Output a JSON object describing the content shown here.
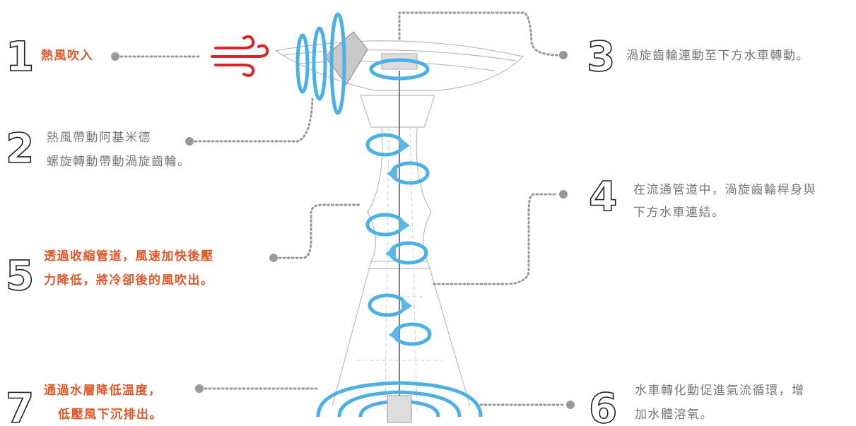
{
  "callouts": [
    {
      "number": "1",
      "lines": [
        "熱風吹入"
      ],
      "highlight": true
    },
    {
      "number": "2",
      "lines": [
        "熱風帶動阿基米德",
        "螺旋轉動帶動渦旋齒輪。"
      ],
      "highlight": false
    },
    {
      "number": "3",
      "lines": [
        "渦旋齒輪連動至下方水車轉動。"
      ],
      "highlight": false
    },
    {
      "number": "4",
      "lines": [
        "在流通管道中，渦旋齒輪桿身與",
        "下方水車連結。"
      ],
      "highlight": false
    },
    {
      "number": "5",
      "lines": [
        "透過收縮管道，風速加快後壓",
        "力降低，將冷卻後的風吹出。"
      ],
      "highlight": true
    },
    {
      "number": "6",
      "lines": [
        "水車轉化動促進氣流循環，增",
        "加水體溶氧。"
      ],
      "highlight": false
    },
    {
      "number": "7",
      "lines": [
        "通過水層降低溫度，",
        "低壓風下沉排出。"
      ],
      "highlight": true
    }
  ]
}
